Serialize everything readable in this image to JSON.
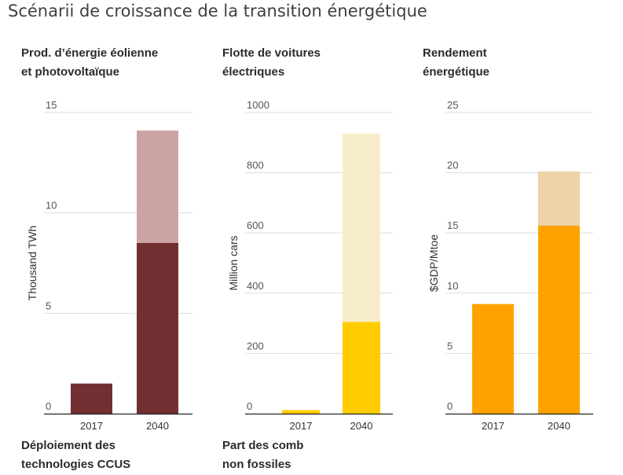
{
  "title": "Scénarii de croissance de la transition énergétique",
  "colors": {
    "c0_base": "#722f32",
    "c0_ext": "#cda4a4",
    "c1_base": "#ffcc00",
    "c1_ext": "#f7eec9",
    "c2_base": "#ffa200",
    "c2_ext": "#edd3a6",
    "grid": "#dddddd",
    "axis": "#222222"
  },
  "bottom_titles": [
    {
      "line1": "Déploiement des",
      "line2": "technologies CCUS"
    },
    {
      "line1": "Part des comb",
      "line2": "non fossiles"
    }
  ],
  "chart_data": [
    {
      "type": "bar",
      "title_line1": "Prod. d’énergie éolienne",
      "title_line2": "et photovoltaïque",
      "ylabel": "Thousand TWh",
      "categories": [
        "2017",
        "2040"
      ],
      "ylim": [
        0,
        15
      ],
      "yticks": [
        "0",
        "5",
        "10",
        "15"
      ],
      "series": [
        {
          "values": [
            1.5,
            8.5
          ]
        },
        {
          "values": [
            0,
            5.6
          ]
        }
      ]
    },
    {
      "type": "bar",
      "title_line1": "Flotte de voitures",
      "title_line2": "électriques",
      "ylabel": "Million cars",
      "categories": [
        "2017",
        "2040"
      ],
      "ylim": [
        0,
        1000
      ],
      "yticks": [
        "0",
        "200",
        "400",
        "600",
        "800",
        "1000"
      ],
      "series": [
        {
          "values": [
            12,
            305
          ]
        },
        {
          "values": [
            0,
            625
          ]
        }
      ]
    },
    {
      "type": "bar",
      "title_line1": "Rendement",
      "title_line2": "énergétique",
      "ylabel": "$GDP/Mtoe",
      "categories": [
        "2017",
        "2040"
      ],
      "ylim": [
        0,
        25
      ],
      "yticks": [
        "0",
        "5",
        "10",
        "15",
        "20",
        "25"
      ],
      "series": [
        {
          "values": [
            9.1,
            15.6
          ]
        },
        {
          "values": [
            0,
            4.5
          ]
        }
      ]
    }
  ]
}
